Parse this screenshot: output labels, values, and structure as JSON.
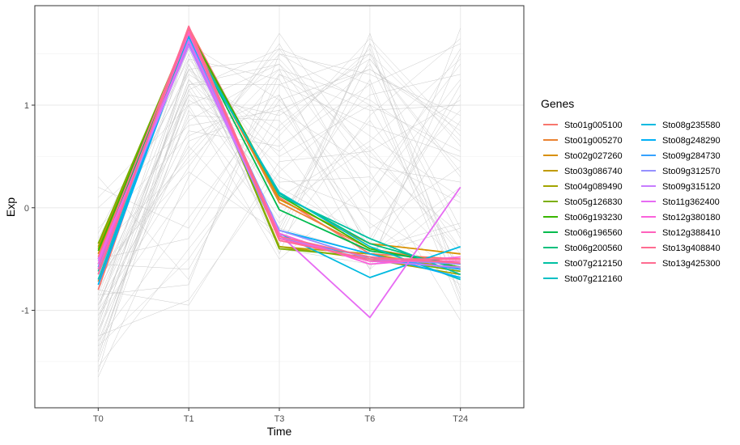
{
  "chart_data": {
    "type": "line",
    "xlabel": "Time",
    "ylabel": "Exp",
    "categories": [
      "T0",
      "T1",
      "T3",
      "T6",
      "T24"
    ],
    "ylim": [
      -1.95,
      1.97
    ],
    "yticks": [
      -1,
      0,
      1
    ],
    "grid": true,
    "legend_title": "Genes",
    "legend_placement": "right",
    "background_line_color": "#c9c9c9",
    "background_series": [
      [
        -0.95,
        1.2,
        1.4,
        0.55,
        -0.4
      ],
      [
        -1.2,
        1.1,
        0.9,
        1.45,
        0.3
      ],
      [
        -1.65,
        0.3,
        1.7,
        0.45,
        -0.25
      ],
      [
        -0.6,
        1.55,
        -0.45,
        1.7,
        -0.8
      ],
      [
        -1.3,
        -0.1,
        1.1,
        -0.6,
        1.75
      ],
      [
        -0.85,
        1.35,
        0.2,
        -0.3,
        1.1
      ],
      [
        0.3,
        -0.7,
        1.3,
        0.7,
        0.1
      ],
      [
        -1.05,
        0.75,
        0.6,
        1.2,
        -0.95
      ],
      [
        -0.4,
        1.6,
        1.05,
        0.1,
        1.55
      ],
      [
        -1.5,
        0.95,
        -0.2,
        1.6,
        0.6
      ],
      [
        -0.7,
        0.5,
        1.5,
        1.0,
        -0.6
      ],
      [
        -1.1,
        1.25,
        0.4,
        -0.5,
        0.85
      ],
      [
        0.1,
        1.0,
        -0.5,
        0.25,
        1.4
      ],
      [
        -1.35,
        -0.5,
        0.8,
        1.5,
        -0.2
      ],
      [
        -0.25,
        1.45,
        1.25,
        -0.2,
        0.4
      ],
      [
        -0.95,
        0.6,
        -0.35,
        0.9,
        1.65
      ],
      [
        -1.45,
        1.15,
        1.55,
        0.35,
        -1.1
      ],
      [
        -0.55,
        -0.6,
        0.95,
        1.35,
        0.75
      ],
      [
        -1.15,
        1.4,
        0.0,
        0.6,
        -0.45
      ],
      [
        -0.8,
        0.85,
        1.35,
        -0.45,
        0.2
      ],
      [
        -1.25,
        -0.9,
        0.35,
        1.1,
        1.3
      ],
      [
        -0.3,
        1.3,
        0.75,
        1.55,
        -0.7
      ],
      [
        -1.0,
        0.4,
        1.6,
        0.0,
        0.95
      ],
      [
        -0.65,
        1.5,
        -0.4,
        -0.55,
        1.5
      ],
      [
        -1.4,
        1.05,
        0.55,
        1.4,
        -0.3
      ],
      [
        0.2,
        -0.2,
        1.2,
        0.8,
        0.5
      ],
      [
        -0.9,
        1.2,
        -0.1,
        1.25,
        -0.85
      ],
      [
        -1.2,
        0.65,
        1.0,
        -0.35,
        1.2
      ],
      [
        -0.45,
        1.35,
        1.45,
        0.5,
        0.05
      ],
      [
        -1.55,
        -0.4,
        0.7,
        1.65,
        0.7
      ],
      [
        -0.75,
        1.1,
        0.25,
        0.3,
        -0.55
      ],
      [
        -1.05,
        0.2,
        1.3,
        0.95,
        1.0
      ],
      [
        -0.35,
        1.55,
        -0.3,
        1.45,
        0.35
      ],
      [
        -1.3,
        0.9,
        0.85,
        -0.15,
        -0.75
      ],
      [
        -0.85,
        -0.75,
        1.5,
        1.3,
        0.9
      ],
      [
        -1.1,
        1.25,
        0.1,
        0.65,
        1.45
      ],
      [
        -0.2,
        0.7,
        1.1,
        -0.4,
        -0.15
      ],
      [
        -1.6,
        1.45,
        0.5,
        1.0,
        0.55
      ],
      [
        -0.6,
        0.35,
        -0.25,
        1.6,
        -0.9
      ],
      [
        -0.95,
        1.0,
        1.4,
        0.15,
        1.25
      ],
      [
        -1.25,
        1.35,
        0.65,
        -0.6,
        0.15
      ],
      [
        -0.5,
        -0.3,
        1.05,
        1.35,
        0.8
      ],
      [
        -1.35,
        1.15,
        -0.15,
        0.85,
        -0.4
      ],
      [
        -0.7,
        0.55,
        1.55,
        1.2,
        1.6
      ],
      [
        -1.0,
        1.6,
        0.3,
        -0.05,
        -0.65
      ],
      [
        0.0,
        0.8,
        0.95,
        0.4,
        0.25
      ],
      [
        -1.45,
        1.2,
        1.2,
        1.5,
        0.65
      ],
      [
        -0.8,
        -0.95,
        0.45,
        0.55,
        1.05
      ],
      [
        -1.15,
        1.4,
        -0.2,
        -0.45,
        -0.2
      ],
      [
        -0.4,
        0.45,
        1.35,
        1.05,
        0.45
      ]
    ],
    "series": [
      {
        "name": "Sto01g005100",
        "color": "#F8766D",
        "values": [
          -0.8,
          1.76,
          0.1,
          -0.45,
          -0.5
        ]
      },
      {
        "name": "Sto01g005270",
        "color": "#EA8331",
        "values": [
          -0.72,
          1.72,
          0.05,
          -0.4,
          -0.55
        ]
      },
      {
        "name": "Sto02g027260",
        "color": "#D89000",
        "values": [
          -0.45,
          1.74,
          0.08,
          -0.35,
          -0.45
        ]
      },
      {
        "name": "Sto03g086740",
        "color": "#C09B00",
        "values": [
          -0.38,
          1.7,
          -0.38,
          -0.45,
          -0.6
        ]
      },
      {
        "name": "Sto04g089490",
        "color": "#A3A500",
        "values": [
          -0.4,
          1.68,
          -0.38,
          -0.5,
          -0.65
        ]
      },
      {
        "name": "Sto05g126830",
        "color": "#7CAE00",
        "values": [
          -0.35,
          1.72,
          -0.4,
          -0.48,
          -0.62
        ]
      },
      {
        "name": "Sto06g193230",
        "color": "#39B600",
        "values": [
          -0.42,
          1.73,
          0.12,
          -0.4,
          -0.58
        ]
      },
      {
        "name": "Sto06g196560",
        "color": "#00BB4E",
        "values": [
          -0.5,
          1.7,
          -0.02,
          -0.42,
          -0.55
        ]
      },
      {
        "name": "Sto06g200560",
        "color": "#00BF7D",
        "values": [
          -0.55,
          1.65,
          0.14,
          -0.35,
          -0.6
        ]
      },
      {
        "name": "Sto07g212150",
        "color": "#00C1A3",
        "values": [
          -0.62,
          1.68,
          0.12,
          -0.3,
          -0.65
        ]
      },
      {
        "name": "Sto07g212160",
        "color": "#00BFC4",
        "values": [
          -0.7,
          1.64,
          0.15,
          -0.38,
          -0.7
        ]
      },
      {
        "name": "Sto08g235580",
        "color": "#00BAE0",
        "values": [
          -0.65,
          1.62,
          -0.25,
          -0.68,
          -0.38
        ]
      },
      {
        "name": "Sto08g248290",
        "color": "#00B0F6",
        "values": [
          -0.75,
          1.66,
          -0.22,
          -0.45,
          -0.68
        ]
      },
      {
        "name": "Sto09g284730",
        "color": "#35A2FF",
        "values": [
          -0.58,
          1.6,
          -0.3,
          -0.48,
          -0.6
        ]
      },
      {
        "name": "Sto09g312570",
        "color": "#9590FF",
        "values": [
          -0.6,
          1.64,
          -0.22,
          -0.5,
          -0.55
        ]
      },
      {
        "name": "Sto09g315120",
        "color": "#C77CFF",
        "values": [
          -0.52,
          1.58,
          -0.28,
          -0.52,
          -0.58
        ]
      },
      {
        "name": "Sto11g362400",
        "color": "#E76BF3",
        "values": [
          -0.5,
          1.62,
          -0.26,
          -1.07,
          0.2
        ]
      },
      {
        "name": "Sto12g380180",
        "color": "#FA62DB",
        "values": [
          -0.55,
          1.7,
          -0.25,
          -0.55,
          -0.48
        ]
      },
      {
        "name": "Sto12g388410",
        "color": "#FF62BC",
        "values": [
          -0.6,
          1.72,
          -0.3,
          -0.52,
          -0.52
        ]
      },
      {
        "name": "Sto13g408840",
        "color": "#FF6C91",
        "values": [
          -0.48,
          1.75,
          -0.32,
          -0.5,
          -0.5
        ]
      },
      {
        "name": "Sto13g425300",
        "color": "#FF6C91",
        "values": [
          -0.65,
          1.77,
          -0.28,
          -0.48,
          -0.54
        ]
      }
    ]
  }
}
